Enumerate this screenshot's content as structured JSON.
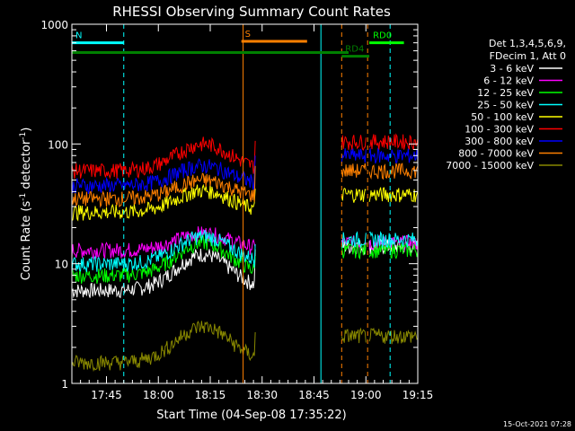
{
  "chart_data": {
    "type": "line",
    "title": "RHESSI Observing Summary Count Rates",
    "xlabel": "Start Time (04-Sep-08 17:35:22)",
    "ylabel_parts": [
      "Count Rate (s",
      "-1",
      " detector",
      "-1",
      ")"
    ],
    "yscale": "log",
    "ylim": [
      1,
      1000
    ],
    "xlim_minutes": [
      0,
      100
    ],
    "x_ticks": [
      {
        "min": 10,
        "label": "17:45"
      },
      {
        "min": 25,
        "label": "18:00"
      },
      {
        "min": 40,
        "label": "18:15"
      },
      {
        "min": 55,
        "label": "18:30"
      },
      {
        "min": 70,
        "label": "18:45"
      },
      {
        "min": 85,
        "label": "19:00"
      },
      {
        "min": 100,
        "label": "19:15"
      }
    ],
    "y_ticks": [
      {
        "value": 1,
        "label": "1"
      },
      {
        "value": 10,
        "label": "10"
      },
      {
        "value": 100,
        "label": "100"
      },
      {
        "value": 1000,
        "label": "1000"
      }
    ],
    "legend_header": [
      "Det 1,3,4,5,6,9,",
      "FDecim 1, Att 0"
    ],
    "series": [
      {
        "name": "3 - 6 keV",
        "color": "#ffffff",
        "base": 6,
        "peak": 12,
        "post": 14
      },
      {
        "name": "6 - 12 keV",
        "color": "#ff00ff",
        "base": 13,
        "peak": 18,
        "post": 15
      },
      {
        "name": "12 - 25 keV",
        "color": "#00ff00",
        "base": 8,
        "peak": 15,
        "post": 13
      },
      {
        "name": "25 - 50 keV",
        "color": "#00ffff",
        "base": 10,
        "peak": 17,
        "post": 16
      },
      {
        "name": "50 - 100 keV",
        "color": "#ffff00",
        "base": 27,
        "peak": 41,
        "post": 38
      },
      {
        "name": "100 - 300 keV",
        "color": "#ff0000",
        "base": 60,
        "peak": 100,
        "post": 105
      },
      {
        "name": "300 - 800 keV",
        "color": "#0000ff",
        "base": 45,
        "peak": 66,
        "post": 80
      },
      {
        "name": "800 - 7000 keV",
        "color": "#ff8000",
        "base": 35,
        "peak": 50,
        "post": 60
      },
      {
        "name": "7000 - 15000 keV",
        "color": "#888800",
        "base": 1.5,
        "peak": 3,
        "post": 2.5
      }
    ],
    "flags": [
      {
        "label": "N",
        "color": "#00ffff",
        "value": 700,
        "x0": 0,
        "x1": 15
      },
      {
        "label": "S",
        "color": "#ff8000",
        "value": 720,
        "x0": 49,
        "x1": 68
      },
      {
        "label": "RD0",
        "color": "#00ff00",
        "value": 700,
        "x0": 86,
        "x1": 96
      },
      {
        "label": "",
        "color": "#008000",
        "value": 580,
        "x0": 0,
        "x1": 80
      },
      {
        "label": "RD4",
        "color": "#008000",
        "value": 540,
        "x0": 78,
        "x1": 86
      }
    ],
    "vertical_markers": [
      {
        "min": 15,
        "color": "#00ffff",
        "dash": true
      },
      {
        "min": 49.5,
        "color": "#ff8000",
        "dash": false
      },
      {
        "min": 72,
        "color": "#00ffff",
        "dash": false
      },
      {
        "min": 78,
        "color": "#ff8000",
        "dash": true
      },
      {
        "min": 85.5,
        "color": "#ff8000",
        "dash": true
      },
      {
        "min": 92,
        "color": "#00ffff",
        "dash": true
      }
    ],
    "gaps": [
      [
        53,
        78
      ],
      [
        85,
        86
      ]
    ],
    "footer_date": "15-Oct-2021 07:28"
  }
}
